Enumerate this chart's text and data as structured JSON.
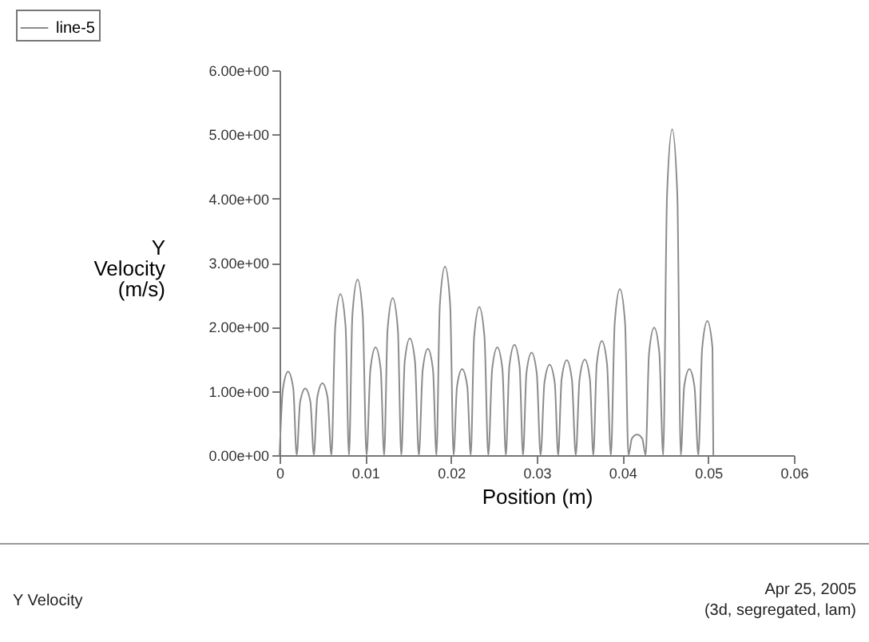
{
  "chart_data": {
    "type": "line",
    "xlabel": "Position (m)",
    "ylabel": "Y Velocity (m/s)",
    "annotations": [
      "Y Velocity",
      "Apr 25, 2005",
      "(3d, segregated, lam)"
    ],
    "xlim": [
      0,
      0.06
    ],
    "xticks": [
      0,
      0.01,
      0.02,
      0.03,
      0.04,
      0.05,
      0.06
    ],
    "ylim": [
      0,
      6
    ],
    "yticks": [
      {
        "value": 0,
        "label": "0.00e+00"
      },
      {
        "value": 1,
        "label": "1.00e+00"
      },
      {
        "value": 2,
        "label": "2.00e+00"
      },
      {
        "value": 3,
        "label": "3.00e+00"
      },
      {
        "value": 4,
        "label": "4.00e+00"
      },
      {
        "value": 5,
        "label": "5.00e+00"
      },
      {
        "value": 6,
        "label": "6.00e+00"
      }
    ],
    "grid": false,
    "legend": "top left",
    "marker": "none",
    "line_style": "solid",
    "series": [
      {
        "name": "line-5",
        "color": "#8c8c8c",
        "x": [
          0,
          0.0004,
          0.001,
          0.0016,
          0.002,
          0.0024,
          0.003,
          0.0036,
          0.004,
          0.0044,
          0.005,
          0.0056,
          0.00605,
          0.0065,
          0.0071,
          0.0077,
          0.0081,
          0.0085,
          0.0091,
          0.0097,
          0.01015,
          0.0106,
          0.0112,
          0.0118,
          0.0122,
          0.0126,
          0.0132,
          0.0138,
          0.0142,
          0.0146,
          0.0152,
          0.0158,
          0.01625,
          0.0167,
          0.0173,
          0.0179,
          0.0183,
          0.0187,
          0.0193,
          0.0199,
          0.0203,
          0.0207,
          0.0213,
          0.0219,
          0.0223,
          0.0227,
          0.0233,
          0.0239,
          0.02435,
          0.0248,
          0.0254,
          0.026,
          0.0264,
          0.0268,
          0.0274,
          0.028,
          0.0284,
          0.0288,
          0.0294,
          0.03,
          0.03045,
          0.0309,
          0.0315,
          0.0321,
          0.0325,
          0.0329,
          0.0335,
          0.0341,
          0.03455,
          0.035,
          0.0356,
          0.0362,
          0.0366,
          0.037,
          0.0376,
          0.0382,
          0.03865,
          0.0391,
          0.0397,
          0.0403,
          0.0407,
          0.0411,
          0.0417,
          0.0423,
          0.0427,
          0.0431,
          0.0437,
          0.0443,
          0.04475,
          0.0452,
          0.0458,
          0.0464,
          0.0468,
          0.0472,
          0.0478,
          0.0484,
          0.04885,
          0.0493,
          0.0499,
          0.0505,
          0.0506
        ],
        "values": [
          0,
          1.04,
          1.3,
          1.04,
          0,
          0.83,
          1.04,
          0.83,
          0,
          0.9,
          1.12,
          0.9,
          0,
          2.01,
          2.51,
          2.01,
          0,
          2.19,
          2.74,
          2.19,
          0,
          1.34,
          1.68,
          1.34,
          0,
          1.96,
          2.45,
          1.96,
          0,
          1.46,
          1.82,
          1.46,
          0,
          1.33,
          1.66,
          1.33,
          0,
          2.35,
          2.94,
          2.35,
          0,
          1.07,
          1.34,
          1.07,
          0,
          1.85,
          2.31,
          1.85,
          0,
          1.34,
          1.68,
          1.34,
          0,
          1.38,
          1.72,
          1.38,
          0,
          1.28,
          1.6,
          1.28,
          0,
          1.13,
          1.41,
          1.13,
          0,
          1.18,
          1.48,
          1.18,
          0,
          1.19,
          1.49,
          1.19,
          0,
          1.42,
          1.78,
          1.42,
          0,
          2.07,
          2.59,
          2.07,
          0,
          0.26,
          0.32,
          0.26,
          0,
          1.59,
          1.99,
          1.59,
          0,
          4.06,
          5.08,
          4.06,
          0,
          1.07,
          1.34,
          1.07,
          0,
          1.67,
          2.09,
          1.67,
          0
        ]
      }
    ]
  }
}
